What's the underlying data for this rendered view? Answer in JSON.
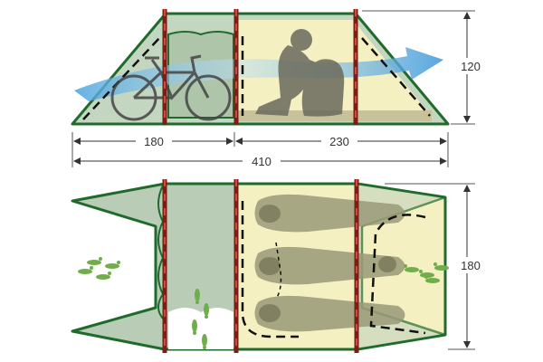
{
  "dimensions": {
    "vestibule_length": "180",
    "inner_length": "230",
    "total_length": "410",
    "height": "120",
    "width": "180"
  },
  "colors": {
    "frame_green": "#1f6b2c",
    "vestibule_fill": "#b9ccb6",
    "inner_fill": "#f4f0c2",
    "pole_red": "#c0392b",
    "airflow_blue": "#4aa3df",
    "footprint_green": "#6fae4a",
    "silhouette": "#6a6a5c"
  },
  "icons": [
    "bicycle-icon",
    "person-with-backpack-icon",
    "airflow-arrow-icon",
    "footprints-icon",
    "sleeping-bag-icon"
  ]
}
